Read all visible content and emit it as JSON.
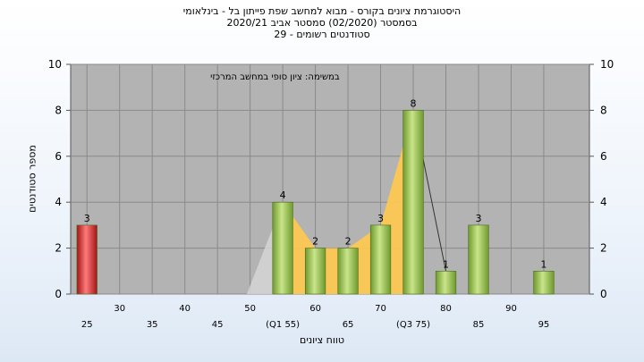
{
  "header": {
    "title_line1": "היסטוגרמת ציונים בקורס - מבוא למחשב שפת פייתון בל - בינלאומי",
    "title_line2": "בסמסטר  (02/2020)  סמסטר אביב 2020/21",
    "title_line3": "סטודנטים רשומים - 29"
  },
  "chart_data": {
    "type": "bar",
    "title": "היסטוגרמת ציונים בקורס - מבוא למחשב שפת פייתון בל - בינלאומי",
    "subtitle": "במשימה: ציון סופי במחשב המרכזי",
    "xlabel": "טווח ציונים",
    "ylabel": "מספר סטודנטים",
    "ylim": [
      0,
      10
    ],
    "yticks": [
      0,
      2,
      4,
      6,
      8,
      10
    ],
    "grid": true,
    "categories_top": [
      "30",
      "40",
      "50",
      "60",
      "70",
      "80",
      "90"
    ],
    "categories_bottom": [
      "25",
      "35",
      "45",
      "(Q1 55)",
      "65",
      "(Q3 75)",
      "85",
      "95"
    ],
    "bins": [
      {
        "x": 25,
        "value": 3,
        "color": "#dd2a2a"
      },
      {
        "x": 30,
        "value": 0
      },
      {
        "x": 35,
        "value": 0
      },
      {
        "x": 40,
        "value": 0
      },
      {
        "x": 45,
        "value": 0
      },
      {
        "x": 50,
        "value": 0
      },
      {
        "x": 55,
        "value": 4,
        "color": "#8dbb45"
      },
      {
        "x": 60,
        "value": 2,
        "color": "#8dbb45"
      },
      {
        "x": 65,
        "value": 2,
        "color": "#8dbb45"
      },
      {
        "x": 70,
        "value": 3,
        "color": "#8dbb45"
      },
      {
        "x": 75,
        "value": 8,
        "color": "#8dbb45"
      },
      {
        "x": 80,
        "value": 1,
        "color": "#8dbb45"
      },
      {
        "x": 85,
        "value": 3,
        "color": "#8dbb45"
      },
      {
        "x": 90,
        "value": 0
      },
      {
        "x": 95,
        "value": 1,
        "color": "#8dbb45"
      }
    ],
    "quartile_band": {
      "from": 55,
      "to": 75,
      "color": "#ffc94d"
    },
    "plot_background": "#b3b3b3"
  }
}
